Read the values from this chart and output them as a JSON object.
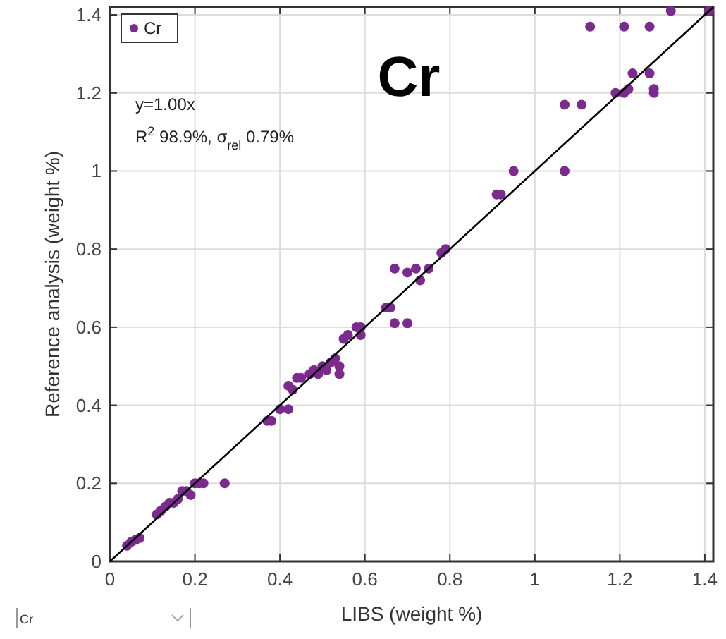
{
  "chart_data": {
    "type": "scatter",
    "title": "Cr",
    "xlabel": "LIBS (weight %)",
    "ylabel": "Reference analysis (weight %)",
    "xlim": [
      0,
      1.42
    ],
    "ylim": [
      0,
      1.42
    ],
    "xticks": [
      0,
      0.2,
      0.4,
      0.6,
      0.8,
      1,
      1.2,
      1.4
    ],
    "yticks": [
      0,
      0.2,
      0.4,
      0.6,
      0.8,
      1,
      1.2,
      1.4
    ],
    "grid": true,
    "legend": "top left",
    "annotations": [
      "y=1.00x",
      "R$^{2}$ 98.9%, σ$_{rel}$ 0.79%",
      "Cr"
    ],
    "series": [
      {
        "name": "Cr",
        "color": "#7b2a8e",
        "marker": "circle",
        "x": [
          0.04,
          0.05,
          0.06,
          0.07,
          0.11,
          0.12,
          0.13,
          0.14,
          0.15,
          0.16,
          0.17,
          0.18,
          0.19,
          0.2,
          0.21,
          0.22,
          0.27,
          0.37,
          0.38,
          0.4,
          0.42,
          0.42,
          0.43,
          0.44,
          0.45,
          0.47,
          0.48,
          0.49,
          0.5,
          0.51,
          0.52,
          0.53,
          0.54,
          0.54,
          0.55,
          0.56,
          0.58,
          0.59,
          0.59,
          0.65,
          0.66,
          0.67,
          0.67,
          0.7,
          0.7,
          0.72,
          0.73,
          0.75,
          0.78,
          0.79,
          0.91,
          0.92,
          0.95,
          1.07,
          1.07,
          1.11,
          1.13,
          1.21,
          1.27,
          1.19,
          1.21,
          1.22,
          1.23,
          1.27,
          1.28,
          1.28,
          1.32,
          1.41
        ],
        "values": [
          0.04,
          0.05,
          0.055,
          0.06,
          0.12,
          0.13,
          0.14,
          0.15,
          0.15,
          0.16,
          0.18,
          0.18,
          0.17,
          0.2,
          0.2,
          0.2,
          0.2,
          0.36,
          0.36,
          0.39,
          0.39,
          0.45,
          0.44,
          0.47,
          0.47,
          0.48,
          0.49,
          0.48,
          0.5,
          0.49,
          0.51,
          0.52,
          0.5,
          0.48,
          0.57,
          0.58,
          0.6,
          0.6,
          0.58,
          0.65,
          0.65,
          0.61,
          0.75,
          0.61,
          0.74,
          0.75,
          0.72,
          0.75,
          0.79,
          0.8,
          0.94,
          0.94,
          1.0,
          1.17,
          1.0,
          1.17,
          1.37,
          1.37,
          1.37,
          1.2,
          1.2,
          1.21,
          1.25,
          1.25,
          1.2,
          1.21,
          1.41,
          1.41
        ]
      },
      {
        "type": "line",
        "color": "#000000",
        "x": [
          0,
          1.42
        ],
        "values": [
          0,
          1.42
        ]
      }
    ]
  }
}
